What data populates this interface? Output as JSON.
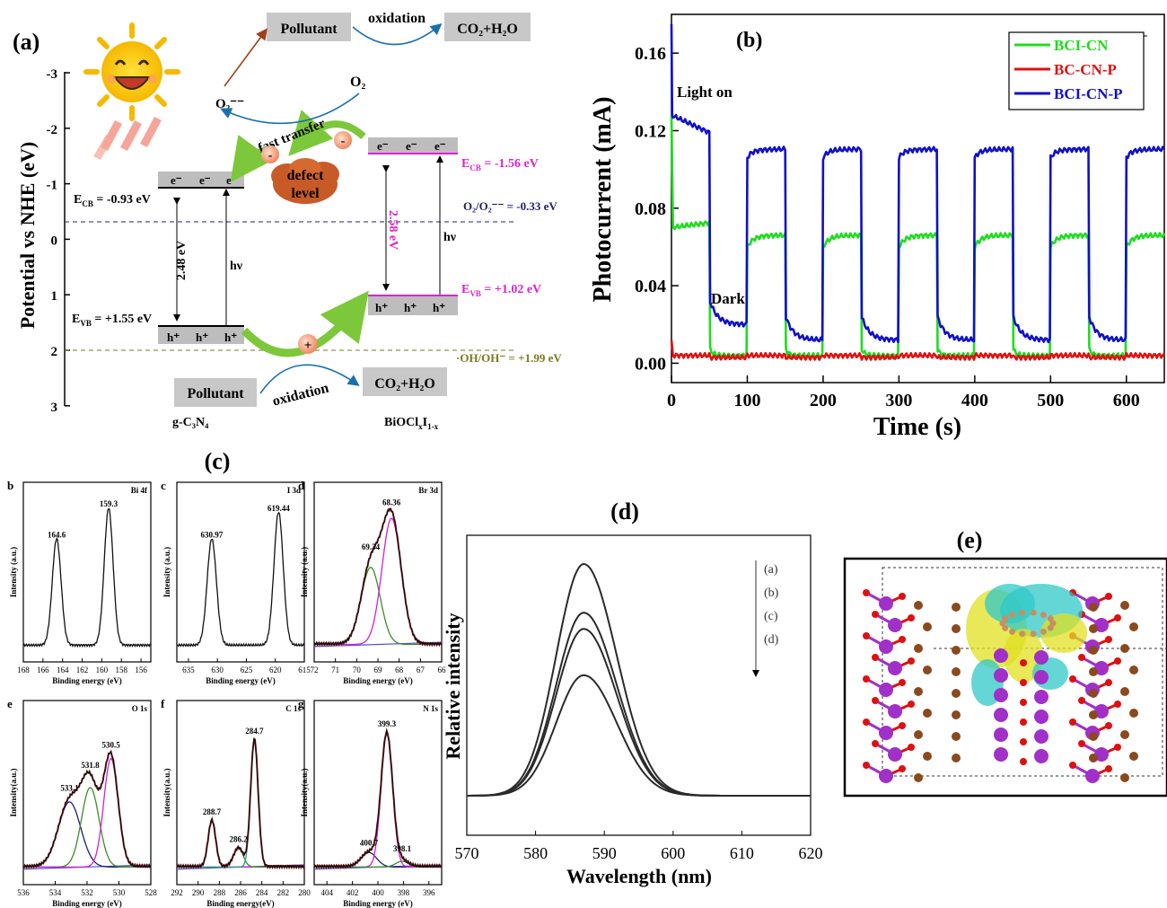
{
  "colors": {
    "green": "#1fdc1f",
    "red": "#e01010",
    "blue": "#1010c8",
    "pink": "#e020d0",
    "navy": "#20206e",
    "olive": "#7a7a20",
    "magenta": "#d020d8",
    "olivegreen": "#3c8c28",
    "darkred": "#a02020",
    "purple": "#5050c8",
    "teal": "#2c9c8c",
    "cyan": "#30c8c8",
    "yellow": "#e0e020",
    "violet": "#a030c8",
    "brown": "#8a4a1e"
  },
  "panel_a": {
    "label": "(a)",
    "ylabel": "Potential vs NHE (eV)",
    "yticks": [
      "-3",
      "-2",
      "-1",
      "0",
      "1",
      "2",
      "3"
    ],
    "left_material": "g-C₃N₄",
    "right_material_main": "BiOCl",
    "right_material_sub1": "x",
    "right_material_mid": "I",
    "right_material_sub2": "1-x",
    "ecb_left": "E",
    "ecb_left_sub": "CB",
    "ecb_left_val": " = -0.93 eV",
    "evb_left": "E",
    "evb_left_sub": "VB",
    "evb_left_val": " = +1.55 eV",
    "ecb_right": "E",
    "ecb_right_sub": "CB",
    "ecb_right_val": " = -1.56 eV",
    "evb_right": "E",
    "evb_right_sub": "VB",
    "evb_right_val": " = +1.02 eV",
    "o2_line": "O₂/O₂⁻⁻ = -0.33 eV",
    "oh_line": "·OH/OH⁻ = +1.99 eV",
    "gap_left": "2.48 eV",
    "gap_right": "2.58 eV",
    "hv": "hν",
    "electron": "e⁻",
    "hole": "h⁺",
    "pollutant": "Pollutant",
    "oxidation": "oxidation",
    "co2": "CO₂+H₂O",
    "o2": "O₂",
    "o2rad": "O₂⁻⁻",
    "fast_transfer": "fast transfer",
    "defect1": "defect",
    "defect2": "level",
    "minus": "-",
    "plus": "+"
  },
  "chart_data": [
    {
      "type": "line",
      "panel": "(b)",
      "xlabel": "Time (s)",
      "ylabel": "Photocurrent (mA)",
      "xlim": [
        0,
        650
      ],
      "ylim": [
        -0.01,
        0.18
      ],
      "xticks": [
        0,
        100,
        200,
        300,
        400,
        500,
        600
      ],
      "yticks": [
        0.0,
        0.04,
        0.08,
        0.12,
        0.16
      ],
      "legend_position": "top-right",
      "annotations": [
        "Light on",
        "Dark"
      ],
      "series": [
        {
          "name": "BCI-CN",
          "color": "#1fdc1f",
          "light_value": 0.066,
          "dark_value": 0.004
        },
        {
          "name": "BC-CN-P",
          "color": "#e01010",
          "light_value": 0.004,
          "dark_value": 0.003
        },
        {
          "name": "BCI-CN-P",
          "color": "#1010c8",
          "light_value": 0.11,
          "dark_value": 0.012
        }
      ],
      "light_on_intervals": [
        [
          0,
          50
        ],
        [
          100,
          150
        ],
        [
          200,
          250
        ],
        [
          300,
          350
        ],
        [
          400,
          450
        ],
        [
          500,
          550
        ],
        [
          600,
          650
        ]
      ]
    },
    {
      "type": "line",
      "panel": "(c)",
      "subplots": [
        {
          "label": "b",
          "title": "Bi 4f",
          "ylabel": "Intensity (a.u.)",
          "xlabel": "Binding energy (eV)",
          "xlim": [
            168,
            155
          ],
          "xticks": [
            168,
            166,
            164,
            162,
            160,
            158,
            156
          ],
          "peaks": [
            {
              "x": 164.6,
              "label": "164.6"
            },
            {
              "x": 159.3,
              "label": "159.3"
            }
          ]
        },
        {
          "label": "c",
          "title": "I 3d",
          "ylabel": "Intensity (a.u.)",
          "xlabel": "Binding energy (eV)",
          "xlim": [
            637,
            615
          ],
          "xticks": [
            635,
            630,
            625,
            620,
            615
          ],
          "peaks": [
            {
              "x": 630.97,
              "label": "630.97"
            },
            {
              "x": 619.44,
              "label": "619.44"
            }
          ]
        },
        {
          "label": "d",
          "title": "Br 3d",
          "ylabel": "Intensity (a.u.)",
          "xlabel": "Binding energy (eV)",
          "xlim": [
            72,
            66
          ],
          "xticks": [
            72,
            71,
            70,
            69,
            68,
            67,
            66
          ],
          "peaks": [
            {
              "x": 69.34,
              "label": "69.34"
            },
            {
              "x": 68.36,
              "label": "68.36"
            }
          ]
        },
        {
          "label": "e",
          "title": "O 1s",
          "ylabel": "Intensity(a.u.)",
          "xlabel": "Binding energy (eV)",
          "xlim": [
            536,
            528
          ],
          "xticks": [
            536,
            534,
            532,
            530,
            528
          ],
          "peaks": [
            {
              "x": 533.1,
              "label": "533.1"
            },
            {
              "x": 531.8,
              "label": "531.8"
            },
            {
              "x": 530.5,
              "label": "530.5"
            }
          ]
        },
        {
          "label": "f",
          "title": "C 1s",
          "ylabel": "Intensity(a.u.)",
          "xlabel": "Binding energy(eV)",
          "xlim": [
            292,
            280
          ],
          "xticks": [
            292,
            290,
            288,
            286,
            284,
            282,
            280
          ],
          "peaks": [
            {
              "x": 288.7,
              "label": "288.7"
            },
            {
              "x": 286.2,
              "label": "286.2"
            },
            {
              "x": 284.7,
              "label": "284.7"
            }
          ]
        },
        {
          "label": "g",
          "title": "N 1s",
          "ylabel": "Intensity(a.u.)",
          "xlabel": "Binding energy (eV)",
          "xlim": [
            405,
            395
          ],
          "xticks": [
            404,
            402,
            400,
            398,
            396
          ],
          "peaks": [
            {
              "x": 400.7,
              "label": "400.7"
            },
            {
              "x": 399.3,
              "label": "399.3"
            },
            {
              "x": 398.1,
              "label": "398.1"
            }
          ]
        }
      ]
    },
    {
      "type": "line",
      "panel": "(d)",
      "xlabel": "Wavelength (nm)",
      "ylabel": "Relative intensity",
      "xlim": [
        570,
        620
      ],
      "xticks": [
        570,
        580,
        590,
        600,
        610,
        620
      ],
      "peak_x": 587,
      "legend": [
        "(a)",
        "(b)",
        "(c)",
        "(d)"
      ],
      "series": [
        {
          "name": "(a)",
          "peak": 1.0
        },
        {
          "name": "(b)",
          "peak": 0.79
        },
        {
          "name": "(c)",
          "peak": 0.72
        },
        {
          "name": "(d)",
          "peak": 0.52
        }
      ]
    }
  ],
  "panel_e": {
    "label": "(e)"
  }
}
